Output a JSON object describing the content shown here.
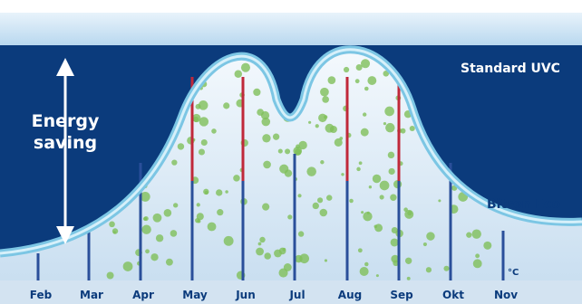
{
  "labels": {
    "standard": "Standard UVC",
    "eco": "Bitron Eco",
    "energy": [
      "Energy",
      "saving"
    ],
    "unit": "°C"
  },
  "months": [
    "Feb",
    "Mar",
    "Apr",
    "May",
    "Jun",
    "Jul",
    "Aug",
    "Sep",
    "Okt",
    "Nov"
  ]
}
